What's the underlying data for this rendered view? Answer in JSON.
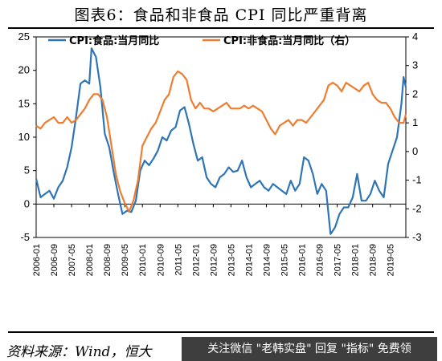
{
  "title": "图表6：食品和非食品 CPI 同比严重背离",
  "source": "资料来源：Wind，恒大",
  "banner": "关注微信 \"老韩实盘\" 回复 \"指标\" 免费领",
  "watermark": "",
  "colors": {
    "food": "#2E75B6",
    "nonfood": "#ED7D31"
  },
  "chart_data": {
    "type": "line",
    "title": "图表6：食品和非食品 CPI 同比严重背离",
    "ylim": [
      -5,
      25
    ],
    "y2lim": [
      -3,
      4
    ],
    "yticks": [
      -5,
      0,
      5,
      10,
      15,
      20,
      25
    ],
    "y2ticks": [
      -3,
      -2,
      -1,
      0,
      1,
      2,
      3,
      4
    ],
    "xticks": [
      "2006-01",
      "2006-09",
      "2007-05",
      "2008-01",
      "2008-09",
      "2009-05",
      "2010-01",
      "2010-09",
      "2011-05",
      "2012-01",
      "2012-09",
      "2013-05",
      "2014-01",
      "2014-09",
      "2015-05",
      "2016-01",
      "2016-09",
      "2017-05",
      "2018-01",
      "2018-09",
      "2019-05"
    ],
    "legend": {
      "position": "top"
    },
    "grid": false,
    "series": [
      {
        "name": "CPI:食品:当月同比",
        "axis": "left",
        "points": [
          [
            "2006-01",
            3.8
          ],
          [
            "2006-03",
            1.0
          ],
          [
            "2006-05",
            1.5
          ],
          [
            "2006-07",
            2.0
          ],
          [
            "2006-09",
            0.8
          ],
          [
            "2006-11",
            2.5
          ],
          [
            "2007-01",
            3.5
          ],
          [
            "2007-03",
            5.5
          ],
          [
            "2007-05",
            8.5
          ],
          [
            "2007-07",
            13.0
          ],
          [
            "2007-09",
            18.0
          ],
          [
            "2007-11",
            18.5
          ],
          [
            "2008-01",
            18.0
          ],
          [
            "2008-02",
            23.3
          ],
          [
            "2008-04",
            22.0
          ],
          [
            "2008-06",
            17.5
          ],
          [
            "2008-08",
            10.5
          ],
          [
            "2008-10",
            8.5
          ],
          [
            "2008-12",
            4.8
          ],
          [
            "2009-02",
            1.5
          ],
          [
            "2009-04",
            -1.5
          ],
          [
            "2009-06",
            -1.0
          ],
          [
            "2009-08",
            -1.2
          ],
          [
            "2009-10",
            0.5
          ],
          [
            "2009-12",
            5.0
          ],
          [
            "2010-02",
            6.5
          ],
          [
            "2010-04",
            5.8
          ],
          [
            "2010-06",
            6.8
          ],
          [
            "2010-08",
            8.0
          ],
          [
            "2010-10",
            10.0
          ],
          [
            "2010-12",
            9.5
          ],
          [
            "2011-02",
            11.0
          ],
          [
            "2011-04",
            11.5
          ],
          [
            "2011-06",
            14.0
          ],
          [
            "2011-08",
            14.5
          ],
          [
            "2011-10",
            12.0
          ],
          [
            "2011-12",
            9.0
          ],
          [
            "2012-02",
            6.5
          ],
          [
            "2012-04",
            7.0
          ],
          [
            "2012-06",
            4.0
          ],
          [
            "2012-08",
            3.0
          ],
          [
            "2012-10",
            2.5
          ],
          [
            "2012-12",
            4.0
          ],
          [
            "2013-02",
            4.5
          ],
          [
            "2013-04",
            5.5
          ],
          [
            "2013-06",
            4.8
          ],
          [
            "2013-08",
            5.0
          ],
          [
            "2013-10",
            6.5
          ],
          [
            "2013-12",
            4.0
          ],
          [
            "2014-02",
            2.5
          ],
          [
            "2014-04",
            3.0
          ],
          [
            "2014-06",
            3.5
          ],
          [
            "2014-08",
            2.5
          ],
          [
            "2014-10",
            2.0
          ],
          [
            "2014-12",
            3.0
          ],
          [
            "2015-02",
            2.5
          ],
          [
            "2015-04",
            2.0
          ],
          [
            "2015-06",
            1.5
          ],
          [
            "2015-08",
            3.5
          ],
          [
            "2015-10",
            2.0
          ],
          [
            "2015-12",
            3.0
          ],
          [
            "2016-02",
            7.0
          ],
          [
            "2016-04",
            6.5
          ],
          [
            "2016-06",
            4.5
          ],
          [
            "2016-08",
            1.5
          ],
          [
            "2016-10",
            3.0
          ],
          [
            "2016-12",
            2.0
          ],
          [
            "2017-02",
            -4.5
          ],
          [
            "2017-04",
            -3.5
          ],
          [
            "2017-06",
            -1.5
          ],
          [
            "2017-08",
            -0.5
          ],
          [
            "2017-10",
            -0.5
          ],
          [
            "2017-12",
            1.0
          ],
          [
            "2018-02",
            4.5
          ],
          [
            "2018-04",
            0.5
          ],
          [
            "2018-06",
            0.5
          ],
          [
            "2018-08",
            1.5
          ],
          [
            "2018-10",
            3.5
          ],
          [
            "2018-12",
            2.0
          ],
          [
            "2019-02",
            1.0
          ],
          [
            "2019-04",
            6.0
          ],
          [
            "2019-06",
            8.0
          ],
          [
            "2019-08",
            10.0
          ],
          [
            "2019-10",
            15.0
          ],
          [
            "2019-11",
            19.0
          ],
          [
            "2019-12",
            17.5
          ]
        ]
      },
      {
        "name": "CPI:非食品:当月同比（右）",
        "axis": "right",
        "points": [
          [
            "2006-01",
            0.9
          ],
          [
            "2006-03",
            0.8
          ],
          [
            "2006-05",
            1.0
          ],
          [
            "2006-07",
            1.1
          ],
          [
            "2006-09",
            1.2
          ],
          [
            "2006-11",
            1.0
          ],
          [
            "2007-01",
            1.0
          ],
          [
            "2007-03",
            1.2
          ],
          [
            "2007-05",
            1.0
          ],
          [
            "2007-07",
            1.1
          ],
          [
            "2007-09",
            1.3
          ],
          [
            "2007-11",
            1.5
          ],
          [
            "2008-01",
            1.8
          ],
          [
            "2008-03",
            2.0
          ],
          [
            "2008-05",
            2.0
          ],
          [
            "2008-07",
            1.8
          ],
          [
            "2008-09",
            1.2
          ],
          [
            "2008-11",
            0.2
          ],
          [
            "2009-01",
            -0.8
          ],
          [
            "2009-03",
            -1.4
          ],
          [
            "2009-05",
            -1.8
          ],
          [
            "2009-07",
            -2.1
          ],
          [
            "2009-09",
            -1.7
          ],
          [
            "2009-11",
            -1.0
          ],
          [
            "2010-01",
            0.2
          ],
          [
            "2010-03",
            0.5
          ],
          [
            "2010-05",
            0.8
          ],
          [
            "2010-07",
            1.0
          ],
          [
            "2010-09",
            1.4
          ],
          [
            "2010-11",
            1.8
          ],
          [
            "2011-01",
            2.0
          ],
          [
            "2011-03",
            2.6
          ],
          [
            "2011-05",
            2.8
          ],
          [
            "2011-07",
            2.7
          ],
          [
            "2011-09",
            2.5
          ],
          [
            "2011-11",
            1.8
          ],
          [
            "2012-01",
            1.5
          ],
          [
            "2012-03",
            1.7
          ],
          [
            "2012-05",
            1.5
          ],
          [
            "2012-07",
            1.5
          ],
          [
            "2012-09",
            1.4
          ],
          [
            "2012-11",
            1.5
          ],
          [
            "2013-01",
            1.6
          ],
          [
            "2013-03",
            1.7
          ],
          [
            "2013-05",
            1.5
          ],
          [
            "2013-07",
            1.5
          ],
          [
            "2013-09",
            1.5
          ],
          [
            "2013-11",
            1.6
          ],
          [
            "2014-01",
            1.5
          ],
          [
            "2014-03",
            1.6
          ],
          [
            "2014-05",
            1.5
          ],
          [
            "2014-07",
            1.4
          ],
          [
            "2014-09",
            1.1
          ],
          [
            "2014-11",
            0.8
          ],
          [
            "2015-01",
            0.6
          ],
          [
            "2015-03",
            0.9
          ],
          [
            "2015-05",
            1.0
          ],
          [
            "2015-07",
            1.1
          ],
          [
            "2015-09",
            0.9
          ],
          [
            "2015-11",
            1.1
          ],
          [
            "2016-01",
            1.1
          ],
          [
            "2016-03",
            1.0
          ],
          [
            "2016-05",
            1.2
          ],
          [
            "2016-07",
            1.4
          ],
          [
            "2016-09",
            1.6
          ],
          [
            "2016-11",
            1.8
          ],
          [
            "2017-01",
            2.3
          ],
          [
            "2017-03",
            2.4
          ],
          [
            "2017-05",
            2.3
          ],
          [
            "2017-07",
            2.1
          ],
          [
            "2017-09",
            2.4
          ],
          [
            "2017-11",
            2.3
          ],
          [
            "2018-01",
            2.2
          ],
          [
            "2018-03",
            2.1
          ],
          [
            "2018-05",
            2.3
          ],
          [
            "2018-07",
            2.4
          ],
          [
            "2018-09",
            2.0
          ],
          [
            "2018-11",
            1.8
          ],
          [
            "2019-01",
            1.7
          ],
          [
            "2019-03",
            1.7
          ],
          [
            "2019-05",
            1.5
          ],
          [
            "2019-07",
            1.2
          ],
          [
            "2019-09",
            1.0
          ],
          [
            "2019-11",
            1.0
          ],
          [
            "2019-12",
            1.3
          ]
        ]
      }
    ]
  }
}
